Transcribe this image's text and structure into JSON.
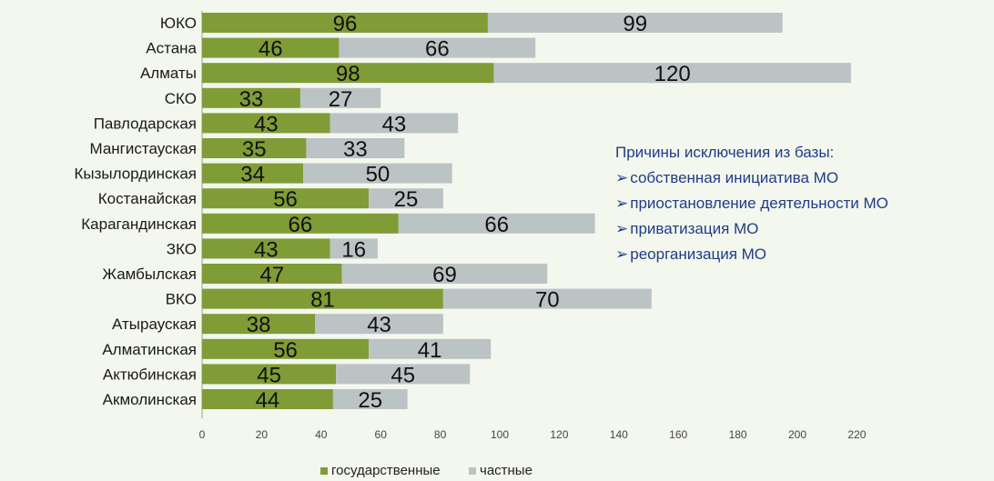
{
  "chart_data": {
    "type": "bar",
    "orientation": "horizontal",
    "stacked": true,
    "categories": [
      "ЮКО",
      "Астана",
      "Алматы",
      "СКО",
      "Павлодарская",
      "Мангистауская",
      "Кызылординская",
      "Костанайская",
      "Карагандинская",
      "ЗКО",
      "Жамбылская",
      "ВКО",
      "Атырауская",
      "Алматинская",
      "Актюбинская",
      "Акмолинская"
    ],
    "series": [
      {
        "name": "государственные",
        "color": "#7f9c36",
        "values": [
          96,
          46,
          98,
          33,
          43,
          35,
          34,
          56,
          66,
          43,
          47,
          81,
          38,
          56,
          45,
          44
        ]
      },
      {
        "name": "частные",
        "color": "#bcc3c5",
        "values": [
          99,
          66,
          120,
          27,
          43,
          33,
          50,
          25,
          66,
          16,
          69,
          70,
          43,
          41,
          45,
          25
        ]
      }
    ],
    "xlim": [
      0,
      220
    ],
    "xticks": [
      "0",
      "20",
      "40",
      "60",
      "80",
      "100",
      "120",
      "140",
      "160",
      "180",
      "200",
      "220"
    ],
    "legend_position": "bottom",
    "grid": false
  },
  "notes": {
    "title": "Причины исключения из базы:",
    "items": [
      "собственная инициатива МО",
      "приостановление деятельности МО",
      "приватизация МО",
      "реорганизация  МО"
    ]
  }
}
